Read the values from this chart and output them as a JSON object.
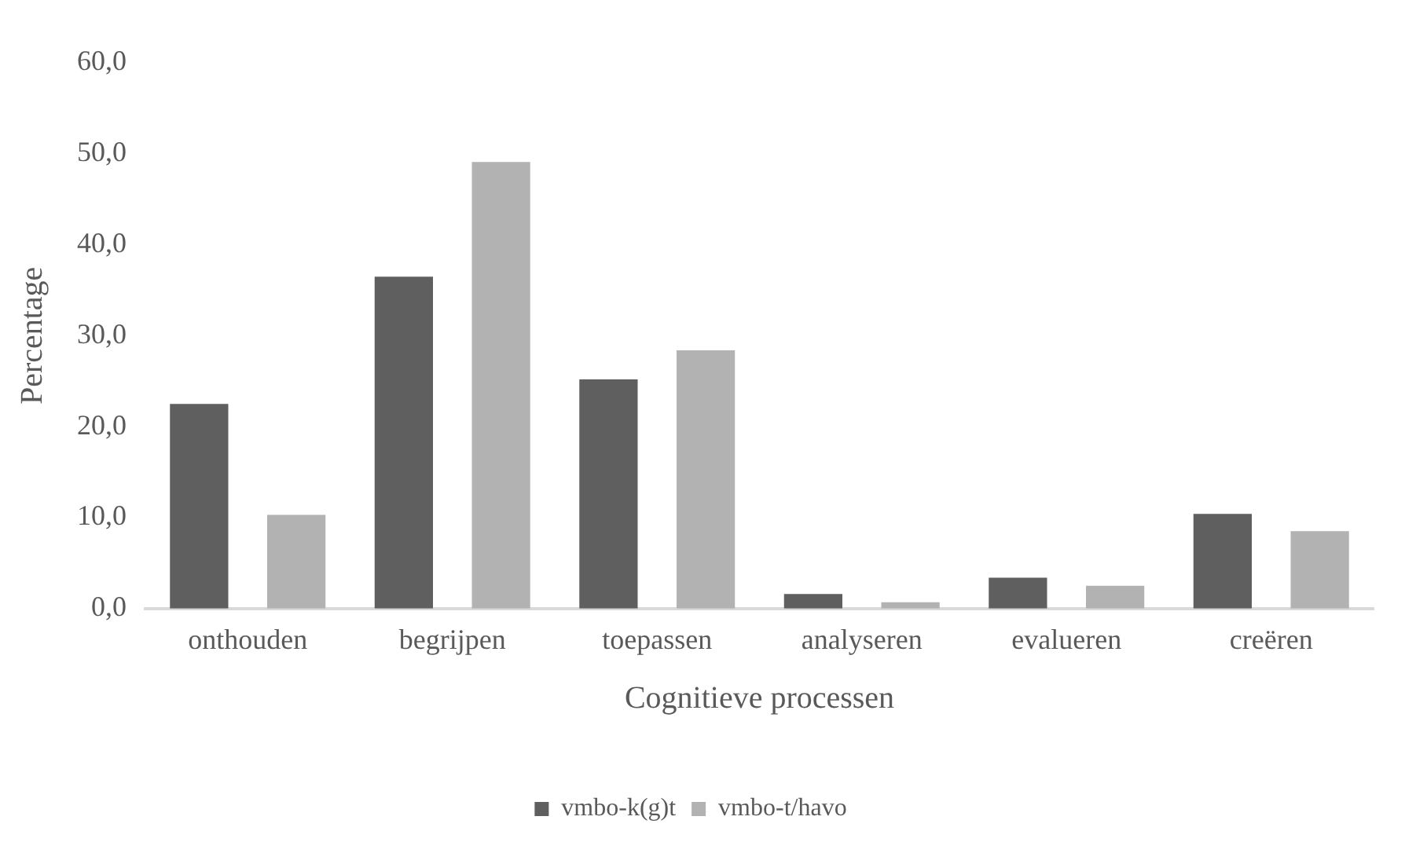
{
  "chart_data": {
    "type": "bar",
    "xlabel": "Cognitieve processen",
    "ylabel": "Percentage",
    "categories": [
      "onthouden",
      "begrijpen",
      "toepassen",
      "analyseren",
      "evalueren",
      "creëren"
    ],
    "series": [
      {
        "name": "vmbo-k(g)t",
        "color": "#5f5f5f",
        "values": [
          22.5,
          36.5,
          25.2,
          1.6,
          3.4,
          10.4
        ]
      },
      {
        "name": "vmbo-t/havo",
        "color": "#b2b2b2",
        "values": [
          10.3,
          49.1,
          28.4,
          0.7,
          2.5,
          8.5
        ]
      }
    ],
    "ylim": [
      0,
      60
    ],
    "yticks": [
      {
        "value": 0,
        "label": "0,0"
      },
      {
        "value": 10,
        "label": "10,0"
      },
      {
        "value": 20,
        "label": "20,0"
      },
      {
        "value": 30,
        "label": "30,0"
      },
      {
        "value": 40,
        "label": "40,0"
      },
      {
        "value": 50,
        "label": "50,0"
      },
      {
        "value": 60,
        "label": "60,0"
      }
    ],
    "grid": false,
    "legend": "bottom"
  }
}
